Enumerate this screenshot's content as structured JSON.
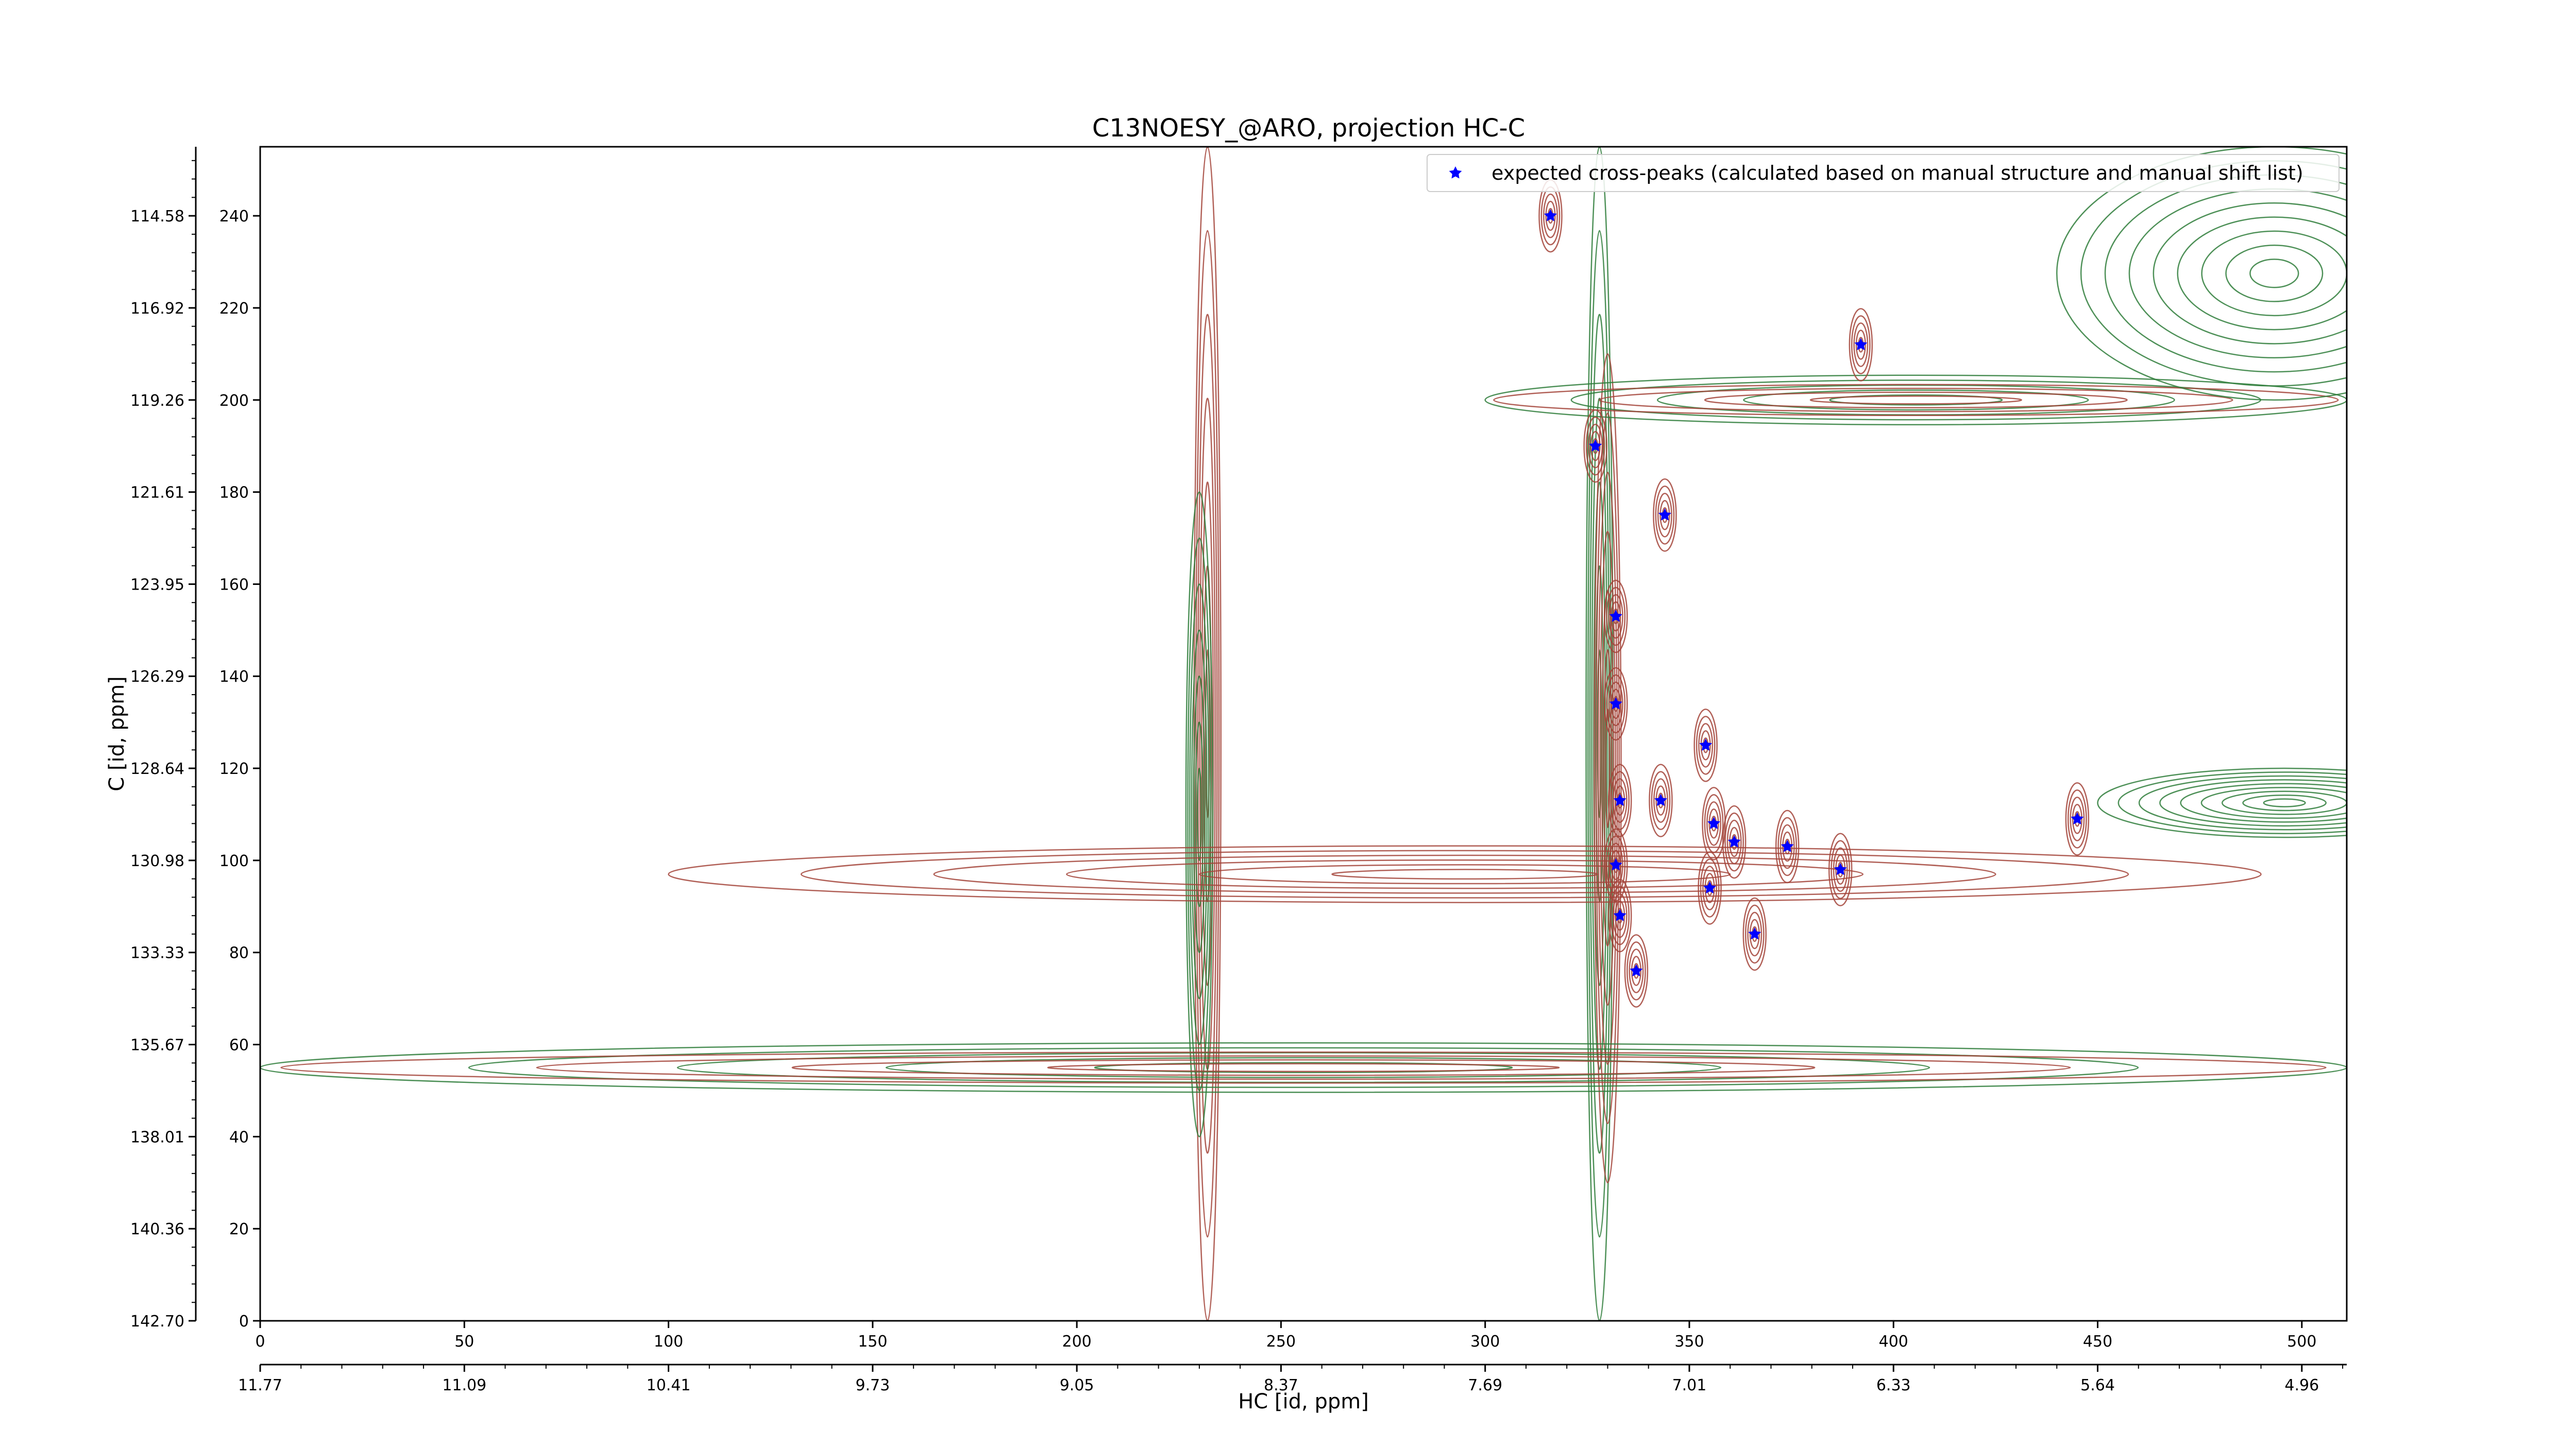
{
  "chart_data": {
    "type": "contour",
    "title": "C13NOESY_@ARO, projection HC-C",
    "xlabel": "HC [id, ppm]",
    "ylabel": "C [id, ppm]",
    "x_index_ticks": [
      "0",
      "50",
      "100",
      "150",
      "200",
      "250",
      "300",
      "350",
      "400",
      "450",
      "500"
    ],
    "x_index_values": [
      0,
      50,
      100,
      150,
      200,
      250,
      300,
      350,
      400,
      450,
      500
    ],
    "x_ppm_ticks": [
      "11.77",
      "11.09",
      "10.41",
      "9.73",
      "9.05",
      "8.37",
      "7.69",
      "7.01",
      "6.33",
      "5.64",
      "4.96"
    ],
    "x_ppm_positions": [
      0,
      50,
      100,
      150,
      200,
      250,
      300,
      350,
      400,
      450,
      500
    ],
    "y_index_ticks": [
      "0",
      "20",
      "40",
      "60",
      "80",
      "100",
      "120",
      "140",
      "160",
      "180",
      "200",
      "220",
      "240"
    ],
    "y_index_values": [
      0,
      20,
      40,
      60,
      80,
      100,
      120,
      140,
      160,
      180,
      200,
      220,
      240
    ],
    "y_ppm_ticks": [
      "142.70",
      "140.36",
      "138.01",
      "135.67",
      "133.33",
      "130.98",
      "128.64",
      "126.29",
      "123.95",
      "121.61",
      "119.26",
      "116.92",
      "114.58"
    ],
    "y_ppm_positions": [
      0,
      20,
      40,
      60,
      80,
      100,
      120,
      140,
      160,
      180,
      200,
      220,
      240
    ],
    "xlim": [
      0,
      511
    ],
    "ylim": [
      0,
      255
    ],
    "legend": {
      "placement": "upper right",
      "entries": [
        {
          "label": "expected cross-peaks (calculated based on manual structure and manual shift list)",
          "marker": "star",
          "color": "#0000ff"
        }
      ]
    },
    "series": [
      {
        "name": "expected cross-peaks (calculated based on manual structure and manual shift list)",
        "type": "scatter",
        "x": [
          316,
          392,
          327,
          344,
          332,
          332,
          354,
          333,
          343,
          356,
          361,
          374,
          445,
          332,
          387,
          355,
          333,
          366,
          337
        ],
        "y": [
          240,
          212,
          190,
          175,
          153,
          134,
          125,
          113,
          113,
          108,
          104,
          103,
          109,
          99,
          98,
          94,
          88,
          84,
          76
        ]
      }
    ],
    "contours": {
      "positive_color": "#a3443a",
      "negative_color": "#2e7d3a",
      "features": [
        {
          "kind": "vertical-ridge",
          "x": 232,
          "y_range": [
            0,
            255
          ],
          "sign": "positive"
        },
        {
          "kind": "vertical-ridge",
          "x": 230,
          "y_range": [
            40,
            180
          ],
          "sign": "negative"
        },
        {
          "kind": "vertical-ridge",
          "x": 328,
          "y_range": [
            0,
            255
          ],
          "sign": "negative"
        },
        {
          "kind": "vertical-ridge",
          "x": 330,
          "y_range": [
            30,
            210
          ],
          "sign": "positive"
        },
        {
          "kind": "horizontal-band",
          "y": 55,
          "x_range": [
            0,
            511
          ],
          "sign": "mixed"
        },
        {
          "kind": "horizontal-band",
          "y": 97,
          "x_range": [
            100,
            490
          ],
          "sign": "positive"
        },
        {
          "kind": "horizontal-band",
          "y": 200,
          "x_range": [
            300,
            511
          ],
          "sign": "mixed"
        },
        {
          "kind": "region",
          "x_range": [
            440,
            511
          ],
          "y_range": [
            200,
            255
          ],
          "sign": "negative"
        },
        {
          "kind": "region",
          "x_range": [
            450,
            511
          ],
          "y_range": [
            105,
            120
          ],
          "sign": "negative"
        }
      ]
    }
  }
}
